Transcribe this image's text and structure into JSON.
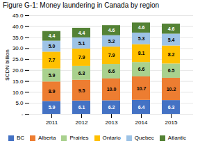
{
  "chart_data": {
    "type": "bar",
    "stacked": true,
    "title": "Figure G-1: Money laundering in Canada by region",
    "categories": [
      "2011",
      "2012",
      "2013",
      "2014",
      "2015"
    ],
    "series": [
      {
        "name": "BC",
        "color": "#4472c4",
        "values": [
          5.9,
          6.1,
          6.2,
          6.4,
          6.3
        ],
        "value_labels": [
          "5.9",
          "6.1",
          "6.2",
          "6.4",
          "6.3"
        ]
      },
      {
        "name": "Alberta",
        "color": "#ed7d31",
        "values": [
          8.9,
          9.5,
          10.0,
          10.7,
          10.2
        ],
        "value_labels": [
          "8.9",
          "9.5",
          "10.0",
          "10.7",
          "10.2"
        ]
      },
      {
        "name": "Prairies",
        "color": "#a9d18e",
        "values": [
          5.9,
          6.3,
          6.6,
          6.6,
          6.5
        ],
        "value_labels": [
          "5.9",
          "6.3",
          "6.6",
          "6.6",
          "6.5"
        ]
      },
      {
        "name": "Ontario",
        "color": "#ffc000",
        "values": [
          7.7,
          7.9,
          7.9,
          8.1,
          8.2
        ],
        "value_labels": [
          "7.7",
          "7.9",
          "7.9",
          "8.1",
          "8.2"
        ]
      },
      {
        "name": "Quebec",
        "color": "#9dc3e6",
        "values": [
          5.0,
          5.1,
          5.2,
          5.3,
          5.4
        ],
        "value_labels": [
          "5.0",
          "5.1",
          "5.2",
          "5.3",
          "5.4"
        ]
      },
      {
        "name": "Atlantic",
        "color": "#548235",
        "values": [
          4.4,
          4.4,
          4.6,
          4.6,
          4.6
        ],
        "value_labels": [
          "4.4",
          "4.4",
          "4.6",
          "4.6",
          "4.6"
        ]
      }
    ],
    "ylabel": "$CDN billion",
    "ylim": [
      0,
      45
    ],
    "yticks": [
      {
        "value": 0,
        "label": "-"
      },
      {
        "value": 5,
        "label": "5.0"
      },
      {
        "value": 10,
        "label": "10.0"
      },
      {
        "value": 15,
        "label": "15.0"
      },
      {
        "value": 20,
        "label": "20.0"
      },
      {
        "value": 25,
        "label": "25.0"
      },
      {
        "value": 30,
        "label": "30.0"
      },
      {
        "value": 35,
        "label": "35.0"
      },
      {
        "value": 40,
        "label": "40.0"
      },
      {
        "value": 45,
        "label": "45.0"
      }
    ],
    "grid": true,
    "legend": "bottom",
    "data_labels": true
  }
}
